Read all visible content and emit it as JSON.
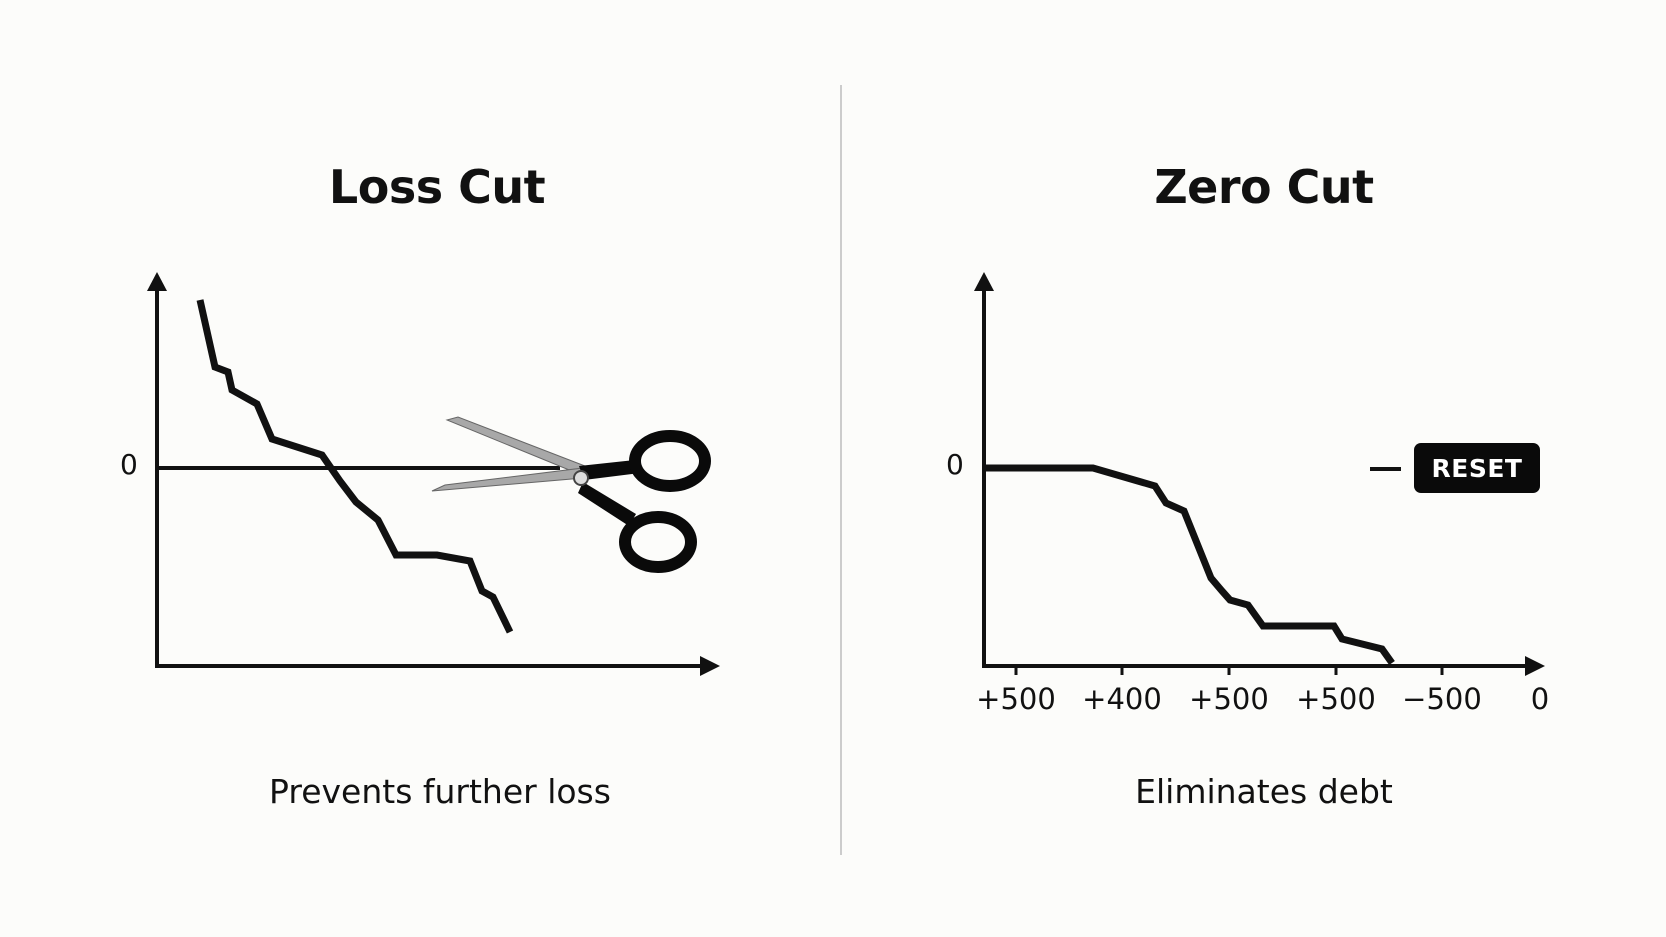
{
  "panels": [
    {
      "title": "Loss Cut",
      "zero_label": "0",
      "caption": "Prevents further loss",
      "icon": "scissors-icon"
    },
    {
      "title": "Zero Cut",
      "zero_label": "0",
      "caption": "Eliminates debt",
      "badge": "RESET",
      "x_tick_labels": [
        "+500",
        "+400",
        "+500",
        "+500",
        "−500",
        "0"
      ]
    }
  ],
  "colors": {
    "background": "#fcfcfa",
    "ink": "#111111",
    "divider": "#cccccc",
    "badge_bg": "#0a0a0a",
    "badge_text": "#ffffff",
    "blade": "#a8a8a8"
  }
}
